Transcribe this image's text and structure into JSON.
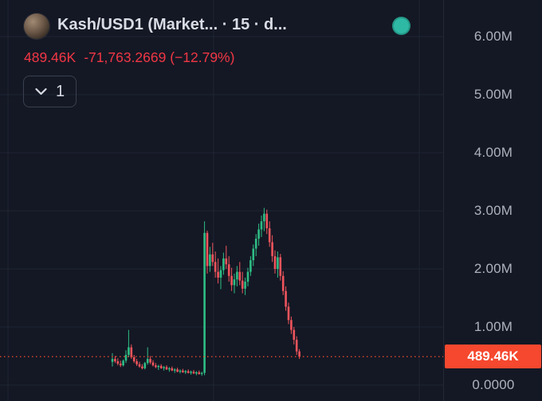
{
  "header": {
    "title": "Kash/USD1 (Market... · 15 · d...",
    "price": "489.46K",
    "change": "-71,763.2669 (−12.79%)"
  },
  "toolbar": {
    "interval_label": "1"
  },
  "colors": {
    "background": "#141824",
    "grid": "#1e2534",
    "axis_text": "#aeb2bd",
    "title_text": "#d9dce4",
    "negative_text": "#f23645",
    "candle_up": "#2ebd85",
    "candle_down": "#f0545c",
    "price_tag": "#f5482e",
    "status_dot": "#2eb9a5"
  },
  "chart_data": {
    "type": "candlestick",
    "title": "Kash/USD1 (Market... · 15 · d...",
    "symbol": "Kash/USD1",
    "interval": "15",
    "units": "millions",
    "ylim": [
      0,
      6.3
    ],
    "grid": "on",
    "y_ticks": [
      {
        "label": "6.00M",
        "value": 6.0
      },
      {
        "label": "5.00M",
        "value": 5.0
      },
      {
        "label": "4.00M",
        "value": 4.0
      },
      {
        "label": "3.00M",
        "value": 3.0
      },
      {
        "label": "2.00M",
        "value": 2.0
      },
      {
        "label": "1.00M",
        "value": 1.0
      },
      {
        "label": "0.0000",
        "value": 0.0
      }
    ],
    "last_price": {
      "label": "489.46K",
      "value": 0.48946
    },
    "change_abs": "-71,763.2669",
    "change_pct": "(−12.79%)",
    "candles_ohlc": [
      [
        0.4,
        0.55,
        0.32,
        0.45
      ],
      [
        0.45,
        0.5,
        0.38,
        0.41
      ],
      [
        0.41,
        0.46,
        0.34,
        0.37
      ],
      [
        0.37,
        0.42,
        0.31,
        0.34
      ],
      [
        0.34,
        0.44,
        0.32,
        0.42
      ],
      [
        0.42,
        0.6,
        0.38,
        0.52
      ],
      [
        0.52,
        0.95,
        0.48,
        0.65
      ],
      [
        0.65,
        0.7,
        0.45,
        0.48
      ],
      [
        0.48,
        0.52,
        0.38,
        0.41
      ],
      [
        0.41,
        0.45,
        0.33,
        0.36
      ],
      [
        0.36,
        0.4,
        0.3,
        0.32
      ],
      [
        0.32,
        0.36,
        0.27,
        0.29
      ],
      [
        0.29,
        0.4,
        0.27,
        0.38
      ],
      [
        0.38,
        0.65,
        0.35,
        0.45
      ],
      [
        0.45,
        0.5,
        0.36,
        0.39
      ],
      [
        0.39,
        0.43,
        0.32,
        0.34
      ],
      [
        0.34,
        0.38,
        0.29,
        0.31
      ],
      [
        0.31,
        0.35,
        0.26,
        0.33
      ],
      [
        0.33,
        0.36,
        0.28,
        0.29
      ],
      [
        0.29,
        0.33,
        0.25,
        0.31
      ],
      [
        0.31,
        0.34,
        0.26,
        0.27
      ],
      [
        0.27,
        0.31,
        0.23,
        0.29
      ],
      [
        0.29,
        0.32,
        0.24,
        0.25
      ],
      [
        0.25,
        0.29,
        0.21,
        0.27
      ],
      [
        0.27,
        0.3,
        0.22,
        0.23
      ],
      [
        0.23,
        0.27,
        0.2,
        0.25
      ],
      [
        0.25,
        0.28,
        0.21,
        0.22
      ],
      [
        0.22,
        0.26,
        0.19,
        0.24
      ],
      [
        0.24,
        0.27,
        0.2,
        0.21
      ],
      [
        0.21,
        0.25,
        0.18,
        0.23
      ],
      [
        0.23,
        0.26,
        0.19,
        0.2
      ],
      [
        0.2,
        0.24,
        0.17,
        0.22
      ],
      [
        0.22,
        0.25,
        0.18,
        0.19
      ],
      [
        0.19,
        0.23,
        0.16,
        0.21
      ],
      [
        0.21,
        2.82,
        0.17,
        2.62
      ],
      [
        2.62,
        2.66,
        1.92,
        2.05
      ],
      [
        2.05,
        2.38,
        1.95,
        2.25
      ],
      [
        2.25,
        2.45,
        2.05,
        2.12
      ],
      [
        2.12,
        2.3,
        1.85,
        1.95
      ],
      [
        1.95,
        2.18,
        1.75,
        1.85
      ],
      [
        1.85,
        2.05,
        1.65,
        1.98
      ],
      [
        1.98,
        2.28,
        1.9,
        2.18
      ],
      [
        2.18,
        2.4,
        2.0,
        2.08
      ],
      [
        2.08,
        2.22,
        1.78,
        1.88
      ],
      [
        1.88,
        2.02,
        1.62,
        1.72
      ],
      [
        1.72,
        1.92,
        1.58,
        1.82
      ],
      [
        1.82,
        2.05,
        1.7,
        1.95
      ],
      [
        1.95,
        2.12,
        1.72,
        1.8
      ],
      [
        1.8,
        1.95,
        1.58,
        1.66
      ],
      [
        1.66,
        1.85,
        1.55,
        1.78
      ],
      [
        1.78,
        2.02,
        1.7,
        1.95
      ],
      [
        1.95,
        2.22,
        1.88,
        2.15
      ],
      [
        2.15,
        2.42,
        2.05,
        2.35
      ],
      [
        2.35,
        2.6,
        2.22,
        2.52
      ],
      [
        2.52,
        2.78,
        2.4,
        2.68
      ],
      [
        2.68,
        2.92,
        2.55,
        2.82
      ],
      [
        2.82,
        3.05,
        2.65,
        2.95
      ],
      [
        2.95,
        3.02,
        2.6,
        2.7
      ],
      [
        2.7,
        2.82,
        2.38,
        2.46
      ],
      [
        2.46,
        2.58,
        2.12,
        2.22
      ],
      [
        2.22,
        2.32,
        1.92,
        2.0
      ],
      [
        2.0,
        2.3,
        1.85,
        2.2
      ],
      [
        2.2,
        2.26,
        1.8,
        1.88
      ],
      [
        1.88,
        1.96,
        1.55,
        1.62
      ],
      [
        1.62,
        1.7,
        1.28,
        1.35
      ],
      [
        1.35,
        1.42,
        1.05,
        1.12
      ],
      [
        1.12,
        1.18,
        0.88,
        0.95
      ],
      [
        0.95,
        1.0,
        0.7,
        0.78
      ],
      [
        0.78,
        0.84,
        0.52,
        0.58
      ],
      [
        0.58,
        0.62,
        0.45,
        0.49
      ]
    ]
  }
}
